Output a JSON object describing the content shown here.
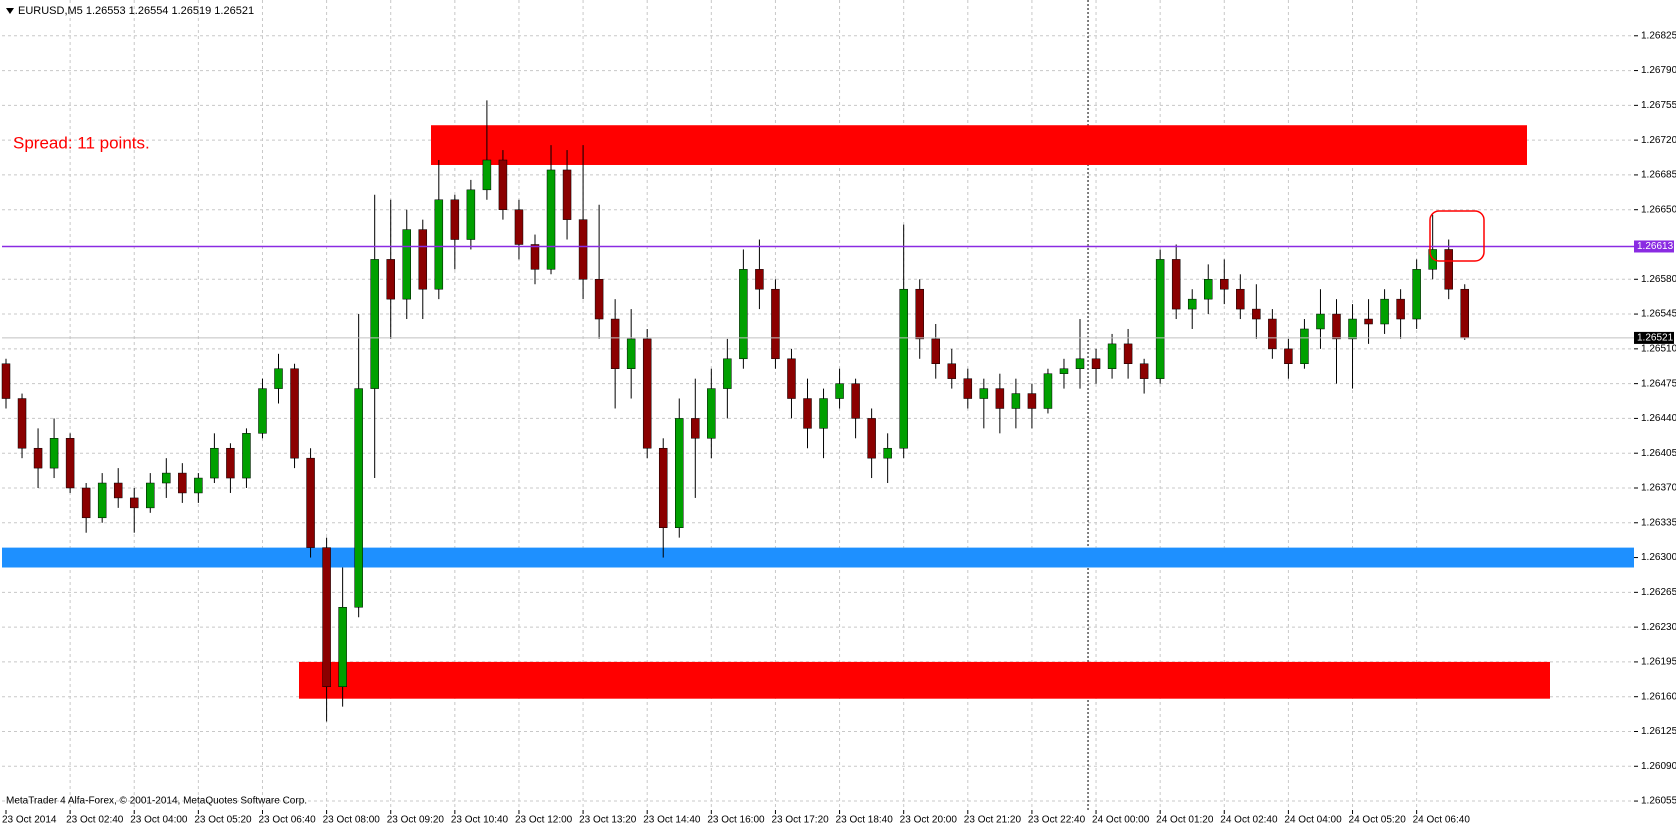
{
  "chart_data": {
    "type": "candlestick",
    "title": "EURUSD,M5  1.26553 1.26554 1.26519 1.26521",
    "spread_text": "Spread: 11 points.",
    "footer": "MetaTrader 4 Alfa-Forex, © 2001-2014, MetaQuotes Software Corp.",
    "categories": [
      "23 Oct 2014",
      null,
      null,
      null,
      "23 Oct 02:40",
      null,
      null,
      null,
      "23 Oct 04:00",
      null,
      null,
      null,
      "23 Oct 05:20",
      null,
      null,
      null,
      "23 Oct 06:40",
      null,
      null,
      null,
      "23 Oct 08:00",
      null,
      null,
      null,
      "23 Oct 09:20",
      null,
      null,
      null,
      "23 Oct 10:40",
      null,
      null,
      null,
      "23 Oct 12:00",
      null,
      null,
      null,
      "23 Oct 13:20",
      null,
      null,
      null,
      "23 Oct 14:40",
      null,
      null,
      null,
      "23 Oct 16:00",
      null,
      null,
      null,
      "23 Oct 17:20",
      null,
      null,
      null,
      "23 Oct 18:40",
      null,
      null,
      null,
      "23 Oct 20:00",
      null,
      null,
      null,
      "23 Oct 21:20",
      null,
      null,
      null,
      "23 Oct 22:40",
      null,
      null,
      null,
      "24 Oct 00:00",
      null,
      null,
      null,
      "24 Oct 01:20",
      null,
      null,
      null,
      "24 Oct 02:40",
      null,
      null,
      null,
      "24 Oct 04:00",
      null,
      null,
      null,
      "24 Oct 05:20",
      null,
      null,
      null,
      "24 Oct 06:40",
      null,
      null,
      null
    ],
    "open": [
      1.26495,
      1.2646,
      1.2641,
      1.2639,
      1.2642,
      1.2637,
      1.2634,
      1.26375,
      1.2636,
      1.2635,
      1.26375,
      1.26385,
      1.26365,
      1.2638,
      1.2641,
      1.2638,
      1.26425,
      1.2647,
      1.2649,
      1.264,
      1.2631,
      1.2617,
      1.2625,
      1.2647,
      1.266,
      1.2656,
      1.2663,
      1.2657,
      1.2666,
      1.2662,
      1.2667,
      1.267,
      1.2665,
      1.26615,
      1.2659,
      1.2669,
      1.2664,
      1.2658,
      1.2654,
      1.2649,
      1.2652,
      1.2641,
      1.2633,
      1.2644,
      1.2642,
      1.2647,
      1.265,
      1.2659,
      1.2657,
      1.265,
      1.2646,
      1.2643,
      1.2646,
      1.26475,
      1.2644,
      1.264,
      1.2641,
      1.2657,
      1.2652,
      1.26495,
      1.2648,
      1.2646,
      1.2647,
      1.2645,
      1.26465,
      1.2645,
      1.26485,
      1.2649,
      1.265,
      1.2649,
      1.26515,
      1.26495,
      1.2648,
      1.266,
      1.2655,
      1.2656,
      1.2658,
      1.2657,
      1.2655,
      1.2654,
      1.2651,
      1.26495,
      1.2653,
      1.26545,
      1.2652,
      1.2654,
      1.26535,
      1.2656,
      1.2654,
      1.2659,
      1.2661,
      1.2657
    ],
    "high": [
      1.265,
      1.26465,
      1.2643,
      1.2644,
      1.26425,
      1.26375,
      1.26385,
      1.2639,
      1.2637,
      1.26385,
      1.264,
      1.26395,
      1.26385,
      1.26425,
      1.26415,
      1.2643,
      1.2648,
      1.26505,
      1.26495,
      1.2641,
      1.2632,
      1.2629,
      1.26545,
      1.26665,
      1.2666,
      1.2665,
      1.2664,
      1.267,
      1.26665,
      1.2668,
      1.2676,
      1.2671,
      1.2666,
      1.26625,
      1.26715,
      1.2671,
      1.26715,
      1.26655,
      1.2656,
      1.2655,
      1.2653,
      1.2642,
      1.2646,
      1.2648,
      1.2649,
      1.2652,
      1.2661,
      1.2662,
      1.2658,
      1.2651,
      1.2648,
      1.2647,
      1.2649,
      1.2648,
      1.2645,
      1.26425,
      1.26635,
      1.2658,
      1.26535,
      1.2651,
      1.2649,
      1.2648,
      1.26485,
      1.2648,
      1.26475,
      1.2649,
      1.265,
      1.2654,
      1.2651,
      1.26525,
      1.2653,
      1.265,
      1.2661,
      1.26615,
      1.2657,
      1.26595,
      1.266,
      1.26585,
      1.26575,
      1.2655,
      1.2652,
      1.2654,
      1.2657,
      1.2656,
      1.26555,
      1.2656,
      1.2657,
      1.2657,
      1.266,
      1.26645,
      1.2662,
      1.26575
    ],
    "low": [
      1.2645,
      1.264,
      1.2637,
      1.2638,
      1.26365,
      1.26325,
      1.26335,
      1.2635,
      1.26325,
      1.26345,
      1.2636,
      1.26355,
      1.26355,
      1.26375,
      1.26365,
      1.2637,
      1.2642,
      1.26455,
      1.2639,
      1.263,
      1.26135,
      1.2615,
      1.2624,
      1.2638,
      1.2652,
      1.2654,
      1.2654,
      1.2656,
      1.2659,
      1.2661,
      1.2666,
      1.2664,
      1.266,
      1.26575,
      1.26585,
      1.2662,
      1.2656,
      1.2652,
      1.2645,
      1.2646,
      1.264,
      1.263,
      1.2632,
      1.2636,
      1.264,
      1.2644,
      1.2649,
      1.2655,
      1.2649,
      1.2644,
      1.2641,
      1.264,
      1.2645,
      1.2642,
      1.2638,
      1.26375,
      1.264,
      1.265,
      1.2648,
      1.2647,
      1.2645,
      1.2643,
      1.26425,
      1.2643,
      1.2643,
      1.26445,
      1.2647,
      1.2647,
      1.26475,
      1.2648,
      1.2648,
      1.26465,
      1.26475,
      1.2654,
      1.2653,
      1.26545,
      1.26555,
      1.2654,
      1.2652,
      1.265,
      1.2648,
      1.2649,
      1.2651,
      1.26475,
      1.2647,
      1.26515,
      1.26525,
      1.2652,
      1.2653,
      1.2658,
      1.2656,
      1.26519
    ],
    "close": [
      1.2646,
      1.2641,
      1.2639,
      1.2642,
      1.2637,
      1.2634,
      1.26375,
      1.2636,
      1.2635,
      1.26375,
      1.26385,
      1.26365,
      1.2638,
      1.2641,
      1.2638,
      1.26425,
      1.2647,
      1.2649,
      1.264,
      1.2631,
      1.2617,
      1.2625,
      1.2647,
      1.266,
      1.2656,
      1.2663,
      1.2657,
      1.2666,
      1.2662,
      1.2667,
      1.267,
      1.2665,
      1.26615,
      1.2659,
      1.2669,
      1.2664,
      1.2658,
      1.2654,
      1.2649,
      1.2652,
      1.2641,
      1.2633,
      1.2644,
      1.2642,
      1.2647,
      1.265,
      1.2659,
      1.2657,
      1.265,
      1.2646,
      1.2643,
      1.2646,
      1.26475,
      1.2644,
      1.264,
      1.2641,
      1.2657,
      1.2652,
      1.26495,
      1.2648,
      1.2646,
      1.2647,
      1.2645,
      1.26465,
      1.2645,
      1.26485,
      1.2649,
      1.265,
      1.2649,
      1.26515,
      1.26495,
      1.2648,
      1.266,
      1.2655,
      1.2656,
      1.2658,
      1.2657,
      1.2655,
      1.2654,
      1.2651,
      1.26495,
      1.2653,
      1.26545,
      1.2652,
      1.2654,
      1.26535,
      1.2656,
      1.2654,
      1.2659,
      1.2661,
      1.2657,
      1.26521
    ],
    "up_color": "#00a000",
    "down_color": "#8b0000",
    "wick_color": "#000000",
    "ylim": [
      1.26046,
      1.26861
    ],
    "yticks": [
      1.26825,
      {
        "value": 1.2679,
        "label": "1.26790"
      },
      1.26755,
      {
        "value": 1.2672,
        "label": "1.26720"
      },
      1.26685,
      {
        "value": 1.2665,
        "label": "1.26650"
      },
      {
        "value": 1.2658,
        "label": "1.26580"
      },
      1.26545,
      {
        "value": 1.2651,
        "label": "1.26510"
      },
      1.26475,
      {
        "value": 1.2644,
        "label": "1.26440"
      },
      1.26405,
      {
        "value": 1.2637,
        "label": "1.26370"
      },
      1.26335,
      {
        "value": 1.263,
        "label": "1.26300"
      },
      1.26265,
      {
        "value": 1.2623,
        "label": "1.26230"
      },
      1.26195,
      {
        "value": 1.2616,
        "label": "1.26160"
      },
      1.26125,
      {
        "value": 1.2609,
        "label": "1.26090"
      },
      1.26055
    ],
    "grid": true,
    "zones": [
      {
        "color": "#ff0000",
        "range": [
          1.26695,
          1.26735
        ]
      },
      {
        "color": "#1e90ff",
        "range": [
          1.2629,
          1.2631
        ]
      },
      {
        "color": "#ff0000",
        "range": [
          1.26158,
          1.26195
        ]
      }
    ],
    "lines": [
      {
        "value": 1.26613,
        "color": "#8a2be2",
        "label_bg": "#8a2be2"
      },
      {
        "value": 1.26521,
        "color": "#c0c0c0",
        "label_bg": "#000000"
      }
    ]
  }
}
